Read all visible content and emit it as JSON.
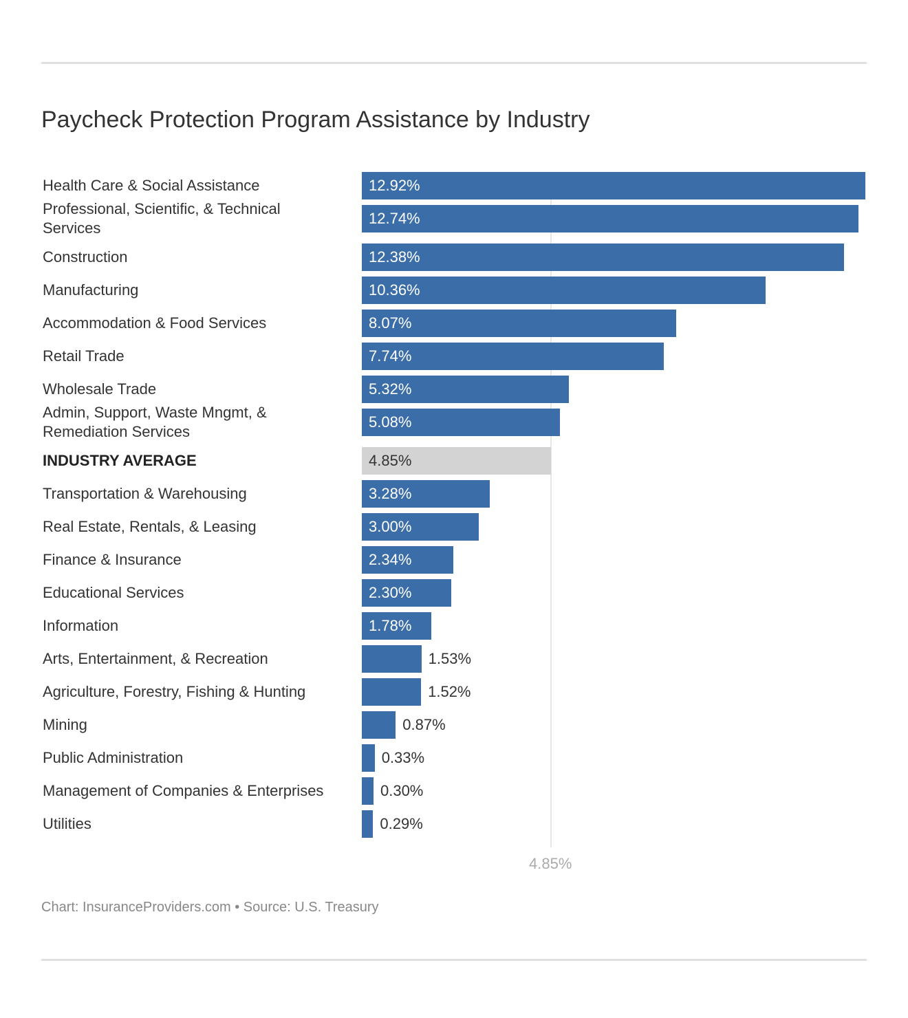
{
  "chart_data": {
    "type": "bar",
    "orientation": "horizontal",
    "title": "Paycheck Protection Program Assistance by Industry",
    "categories": [
      "Health Care & Social Assistance",
      "Professional, Scientific, & Technical Services",
      "Construction",
      "Manufacturing",
      "Accommodation & Food Services",
      "Retail Trade",
      "Wholesale Trade",
      "Admin, Support, Waste Mngmt, & Remediation Services",
      "INDUSTRY AVERAGE",
      "Transportation & Warehousing",
      "Real Estate, Rentals, & Leasing",
      "Finance & Insurance",
      "Educational Services",
      "Information",
      "Arts, Entertainment, & Recreation",
      "Agriculture, Forestry, Fishing & Hunting",
      "Mining",
      "Public Administration",
      "Management of Companies & Enterprises",
      "Utilities"
    ],
    "values": [
      12.92,
      12.74,
      12.38,
      10.36,
      8.07,
      7.74,
      5.32,
      5.08,
      4.85,
      3.28,
      3.0,
      2.34,
      2.3,
      1.78,
      1.53,
      1.52,
      0.87,
      0.33,
      0.3,
      0.29
    ],
    "value_labels": [
      "12.92%",
      "12.74%",
      "12.38%",
      "10.36%",
      "8.07%",
      "7.74%",
      "5.32%",
      "5.08%",
      "4.85%",
      "3.28%",
      "3.00%",
      "2.34%",
      "2.30%",
      "1.78%",
      "1.53%",
      "1.52%",
      "0.87%",
      "0.33%",
      "0.30%",
      "0.29%"
    ],
    "highlight_category": "INDUSTRY AVERAGE",
    "reference_line": {
      "value": 4.85,
      "label": "4.85%"
    },
    "xlim": [
      0,
      12.92
    ],
    "grid": false,
    "colors": {
      "bar": "#3b6ea8",
      "average_bar": "#d3d3d3",
      "reference_line": "#e6e6e6"
    }
  },
  "footer": "Chart: InsuranceProviders.com • Source: U.S. Treasury"
}
